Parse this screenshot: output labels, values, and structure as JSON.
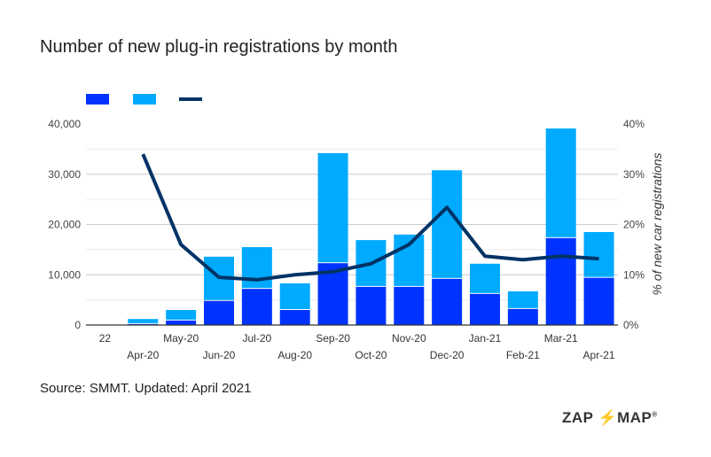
{
  "chart_data": {
    "type": "bar+line",
    "title": "Number of new plug-in registrations by month",
    "categories": [
      "22",
      "Apr-20",
      "May-20",
      "Jun-20",
      "Jul-20",
      "Aug-20",
      "Sep-20",
      "Oct-20",
      "Nov-20",
      "Dec-20",
      "Jan-21",
      "Feb-21",
      "Mar-21",
      "Apr-21"
    ],
    "stacked": true,
    "series": [
      {
        "kind": "bar",
        "color": "#0033ff",
        "values": [
          0,
          200,
          900,
          4800,
          7200,
          3000,
          12300,
          7600,
          7600,
          9200,
          6200,
          3200,
          17300,
          9400
        ]
      },
      {
        "kind": "bar",
        "color": "#00aaff",
        "values": [
          0,
          1000,
          2100,
          8800,
          8300,
          5300,
          21900,
          9300,
          10400,
          21600,
          6000,
          3500,
          21800,
          9100
        ]
      },
      {
        "kind": "line",
        "axis": "right",
        "color": "#003366",
        "values": [
          null,
          34,
          16,
          9.5,
          9,
          10,
          10.6,
          12.2,
          16,
          23.4,
          13.7,
          13,
          13.7,
          13.2
        ]
      }
    ],
    "ylim": [
      0,
      40000
    ],
    "yticks": [
      "0",
      "10,000",
      "20,000",
      "30,000",
      "40,000"
    ],
    "y2lim": [
      0,
      40
    ],
    "y2ticks": [
      "0%",
      "10%",
      "20%",
      "30%",
      "40%"
    ],
    "y2label": "% of new car registrations",
    "grid": true,
    "legend": "top-left"
  },
  "source": "Source: SMMT. Updated: April 2021",
  "logo": {
    "left": "ZAP",
    "right": "MAP",
    "mark": "®"
  }
}
